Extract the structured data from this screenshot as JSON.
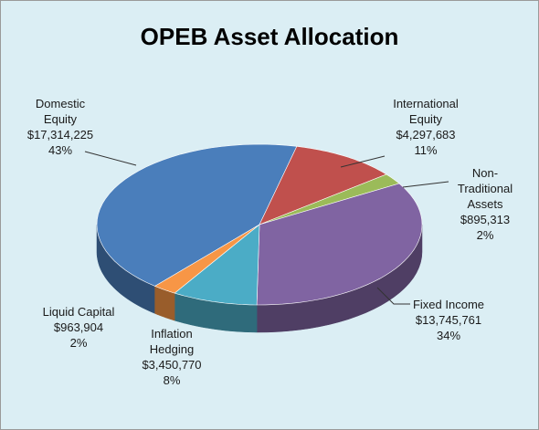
{
  "chart_data": {
    "type": "pie",
    "title": "OPEB Asset Allocation",
    "categories": [
      "Domestic Equity",
      "International Equity",
      "Non-Traditional Assets",
      "Fixed Income",
      "Inflation Hedging",
      "Liquid Capital"
    ],
    "values": [
      17314225,
      4297683,
      895313,
      13745761,
      3450770,
      963904
    ],
    "value_labels": [
      "$17,314,225",
      "$4,297,683",
      "$895,313",
      "$13,745,761",
      "$3,450,770",
      "$963,904"
    ],
    "percent_values": [
      43,
      11,
      2,
      34,
      8,
      2
    ],
    "percent_labels": [
      "43%",
      "11%",
      "2%",
      "34%",
      "8%",
      "2%"
    ],
    "colors": [
      "#4a7ebb",
      "#c0504d",
      "#9bbb59",
      "#8064a2",
      "#4bacc6",
      "#f79646"
    ]
  }
}
